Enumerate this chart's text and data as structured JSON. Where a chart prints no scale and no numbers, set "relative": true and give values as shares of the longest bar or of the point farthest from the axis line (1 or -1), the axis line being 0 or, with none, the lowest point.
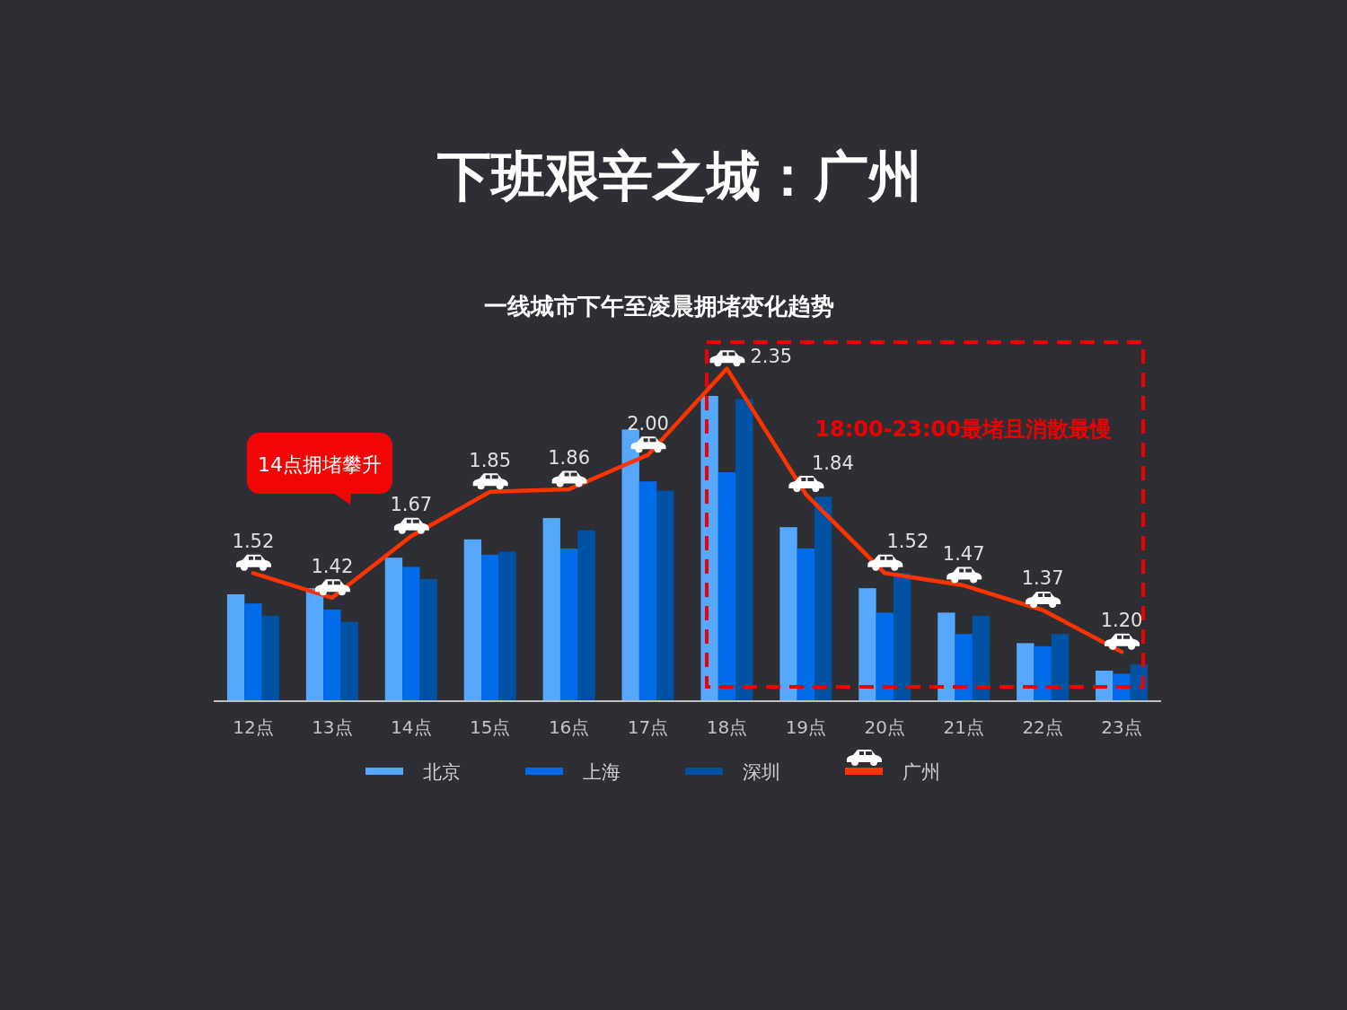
{
  "chart_data": [
    {
      "type": "bar",
      "title": "下班艰辛之城：广州",
      "subtitle": "一线城市下午至凌晨拥堵变化趋势",
      "categories": [
        "12点",
        "13点",
        "14点",
        "15点",
        "16点",
        "17点",
        "18点",
        "19点",
        "20点",
        "21点",
        "22点",
        "23点"
      ],
      "relative": true,
      "series": [
        {
          "name": "北京",
          "color": "#56a8fd",
          "values": [
            0.35,
            0.37,
            0.47,
            0.53,
            0.6,
            0.89,
            1,
            0.57,
            0.37,
            0.29,
            0.19,
            0.1
          ]
        },
        {
          "name": "上海",
          "color": "#006cea",
          "values": [
            0.32,
            0.3,
            0.44,
            0.48,
            0.5,
            0.72,
            0.75,
            0.5,
            0.29,
            0.22,
            0.18,
            0.09
          ]
        },
        {
          "name": "深圳",
          "color": "#0052a5",
          "values": [
            0.28,
            0.26,
            0.4,
            0.49,
            0.56,
            0.69,
            0.99,
            0.67,
            0.42,
            0.28,
            0.22,
            0.12
          ]
        }
      ],
      "legend": "bottom"
    },
    {
      "type": "line",
      "categories": [
        "12点",
        "13点",
        "14点",
        "15点",
        "16点",
        "17点",
        "18点",
        "19点",
        "20点",
        "21点",
        "22点",
        "23点"
      ],
      "tick_labels": false,
      "series": [
        {
          "name": "广州",
          "color": "#ff3300",
          "values": [
            1.52,
            1.42,
            1.67,
            1.85,
            1.86,
            2.0,
            2.35,
            1.84,
            1.52,
            1.47,
            1.37,
            1.2
          ],
          "value_labels": [
            "1.52",
            "1.42",
            "1.67",
            "1.85",
            "1.86",
            "2.00",
            "2.35",
            "1.84",
            "1.52",
            "1.47",
            "1.37",
            "1.20"
          ]
        }
      ],
      "annotations": [
        "14点拥堵攀升",
        "18:00-23:00最堵且消散最慢"
      ],
      "legend": "bottom"
    }
  ]
}
